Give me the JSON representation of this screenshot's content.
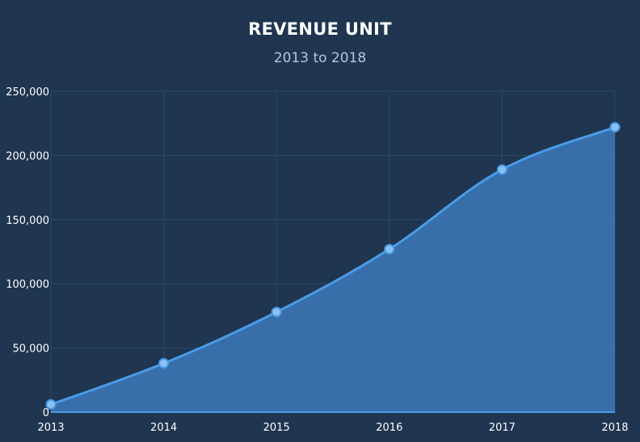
{
  "chart_data": {
    "type": "area",
    "title": "REVENUE UNIT",
    "subtitle": "2013 to 2018",
    "xlabel": "",
    "ylabel": "",
    "categories": [
      "2013",
      "2014",
      "2015",
      "2016",
      "2017",
      "2018"
    ],
    "series": [
      {
        "values": [
          6000,
          38000,
          78000,
          127000,
          189000,
          222000
        ]
      }
    ],
    "ylim": [
      0,
      250000
    ],
    "yticks": [
      0,
      50000,
      100000,
      150000,
      200000,
      250000
    ],
    "ytick_labels": [
      "0",
      "50,000",
      "100,000",
      "150,000",
      "200,000",
      "250,000"
    ],
    "grid": true,
    "legend": "none",
    "colors": {
      "background": "#1f3550",
      "line": "#4a9be8",
      "fill": "#3a73b0",
      "marker_fill": "#8cc0f2",
      "marker_stroke": "#4a9be8",
      "grid": "#2a4563"
    }
  }
}
